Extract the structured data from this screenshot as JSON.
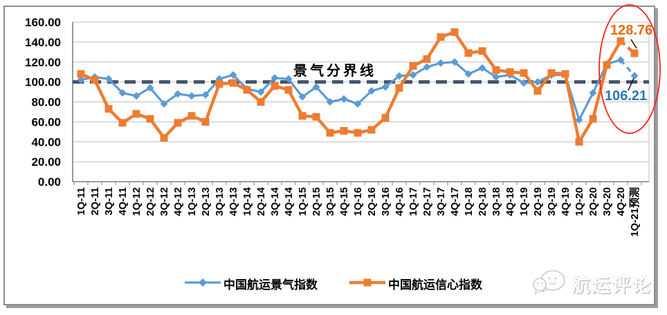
{
  "chart_data": {
    "type": "line",
    "title": "",
    "categories": [
      "1Q-11",
      "2Q-11",
      "3Q-11",
      "4Q-11",
      "1Q-12",
      "2Q-12",
      "3Q-12",
      "4Q-12",
      "1Q-13",
      "2Q-13",
      "3Q-13",
      "4Q-13",
      "1Q-14",
      "2Q-14",
      "3Q-14",
      "4Q-14",
      "1Q-15",
      "2Q-15",
      "3Q-15",
      "4Q-15",
      "1Q-16",
      "2Q-16",
      "3Q-16",
      "4Q-16",
      "1Q-17",
      "2Q-17",
      "3Q-17",
      "4Q-17",
      "1Q-18",
      "2Q-18",
      "3Q-18",
      "4Q-18",
      "1Q-19",
      "2Q-19",
      "3Q-19",
      "4Q-19",
      "1Q-20",
      "2Q-20",
      "3Q-20",
      "4Q-20",
      "1Q-21预测"
    ],
    "series": [
      {
        "name": "中国航运景气指数",
        "marker": "diamond",
        "color": "#5B9BD5",
        "values": [
          102,
          105,
          103,
          89,
          86,
          94,
          78,
          88,
          86,
          87,
          103,
          107,
          93,
          90,
          104,
          103,
          85,
          95,
          80,
          83,
          78,
          91,
          95,
          106,
          107,
          115,
          119,
          120,
          108,
          114,
          105,
          107,
          99,
          100,
          107,
          107,
          62,
          89,
          118,
          122,
          106.21
        ]
      },
      {
        "name": "中国航运信心指数",
        "marker": "square",
        "color": "#ED7D31",
        "values": [
          108,
          102,
          73,
          59,
          68,
          63,
          44,
          59,
          66,
          60,
          98,
          99,
          92,
          80,
          96,
          92,
          66,
          65,
          49,
          51,
          49,
          52,
          64,
          94,
          116,
          123,
          145,
          150,
          129,
          131,
          112,
          110,
          109,
          91,
          109,
          108,
          40,
          63,
          117,
          141,
          128.76
        ]
      }
    ],
    "ylim": [
      0,
      160
    ],
    "y_ticks": [
      "0.00",
      "20.00",
      "40.00",
      "60.00",
      "80.00",
      "100.00",
      "120.00",
      "140.00",
      "160.00"
    ],
    "reference_line": {
      "value": 100,
      "label": "景气分界线",
      "color": "#44546A"
    },
    "annotations": {
      "csi_value": "128.76",
      "cspi_value": "106.21",
      "forecast_last_segment_dashed": true,
      "highlight": "red ellipse around 4Q-20 and 1Q-21 forecast points"
    },
    "legend_position": "bottom",
    "grid": "horizontal"
  },
  "legend": {
    "items": [
      "中国航运景气指数",
      "中国航运信心指数"
    ]
  },
  "watermark": {
    "text": "航运评论",
    "logo": "wechat-chat-bubbles-icon"
  },
  "colors": {
    "cspi_line": "#5B9BD5",
    "csi_line": "#ED7D31",
    "boundary_dash": "#44546A",
    "gridline": "#BFBFBF",
    "axis": "#7F7F7F",
    "annotation_red": "#FF1F1F",
    "csi_label_text": "#E26B0A",
    "cspi_label_text": "#2E75B6"
  }
}
